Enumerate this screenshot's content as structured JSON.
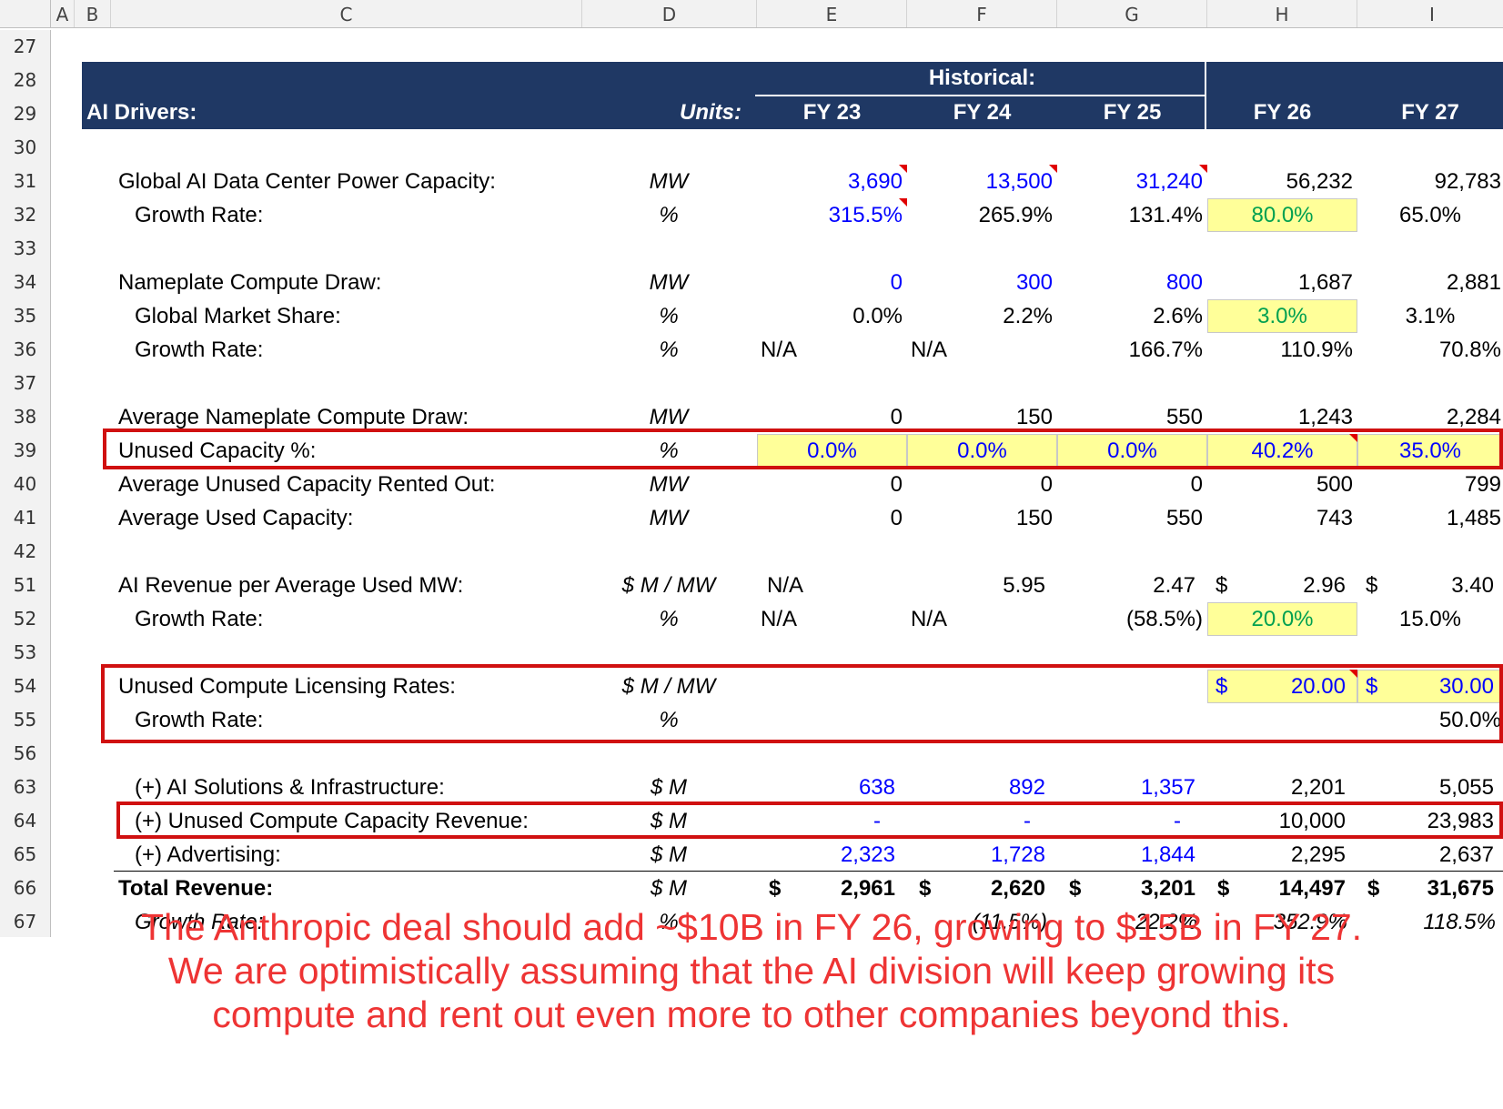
{
  "columns": [
    "A",
    "B",
    "C",
    "D",
    "E",
    "F",
    "G",
    "H",
    "I"
  ],
  "row_numbers": [
    "27",
    "28",
    "29",
    "30",
    "31",
    "32",
    "33",
    "34",
    "35",
    "36",
    "37",
    "38",
    "39",
    "40",
    "41",
    "42",
    "51",
    "52",
    "53",
    "54",
    "55",
    "56",
    "63",
    "64",
    "65",
    "66",
    "67"
  ],
  "header": {
    "title": "AI Drivers:",
    "units": "Units:",
    "historical": "Historical:",
    "years": [
      "FY 23",
      "FY 24",
      "FY 25",
      "FY 26",
      "FY 27"
    ]
  },
  "rows": {
    "r31": {
      "label": "Global AI Data Center Power Capacity:",
      "unit": "MW",
      "values": [
        "3,690",
        "13,500",
        "31,240",
        "56,232",
        "92,783"
      ]
    },
    "r32": {
      "label": "Growth Rate:",
      "unit": "%",
      "values": [
        "315.5%",
        "265.9%",
        "131.4%",
        "80.0%",
        "65.0%"
      ]
    },
    "r34": {
      "label": "Nameplate Compute Draw:",
      "unit": "MW",
      "values": [
        "0",
        "300",
        "800",
        "1,687",
        "2,881"
      ]
    },
    "r35": {
      "label": "Global Market Share:",
      "unit": "%",
      "values": [
        "0.0%",
        "2.2%",
        "2.6%",
        "3.0%",
        "3.1%"
      ]
    },
    "r36": {
      "label": "Growth Rate:",
      "unit": "%",
      "values": [
        "N/A",
        "N/A",
        "166.7%",
        "110.9%",
        "70.8%"
      ]
    },
    "r38": {
      "label": "Average Nameplate Compute Draw:",
      "unit": "MW",
      "values": [
        "0",
        "150",
        "550",
        "1,243",
        "2,284"
      ]
    },
    "r39": {
      "label": "Unused Capacity %:",
      "unit": "%",
      "values": [
        "0.0%",
        "0.0%",
        "0.0%",
        "40.2%",
        "35.0%"
      ]
    },
    "r40": {
      "label": "Average Unused Capacity Rented Out:",
      "unit": "MW",
      "values": [
        "0",
        "0",
        "0",
        "500",
        "799"
      ]
    },
    "r41": {
      "label": "Average Used Capacity:",
      "unit": "MW",
      "values": [
        "0",
        "150",
        "550",
        "743",
        "1,485"
      ]
    },
    "r51": {
      "label": "AI Revenue per Average Used MW:",
      "unit": "$ M / MW",
      "values": [
        "N/A",
        "5.95",
        "2.47",
        "2.96",
        "3.40"
      ],
      "dollar": "$"
    },
    "r52": {
      "label": "Growth Rate:",
      "unit": "%",
      "values": [
        "N/A",
        "N/A",
        "(58.5%)",
        "20.0%",
        "15.0%"
      ]
    },
    "r54": {
      "label": "Unused Compute Licensing Rates:",
      "unit": "$ M / MW",
      "values": [
        "20.00",
        "30.00"
      ],
      "dollar": "$"
    },
    "r55": {
      "label": "Growth Rate:",
      "unit": "%",
      "values": [
        "50.0%"
      ]
    },
    "r63": {
      "label": "(+) AI Solutions & Infrastructure:",
      "unit": "$ M",
      "values": [
        "638",
        "892",
        "1,357",
        "2,201",
        "5,055"
      ]
    },
    "r64": {
      "label": "(+) Unused Compute Capacity Revenue:",
      "unit": "$ M",
      "values": [
        "-",
        "-",
        "-",
        "10,000",
        "23,983"
      ]
    },
    "r65": {
      "label": "(+) Advertising:",
      "unit": "$ M",
      "values": [
        "2,323",
        "1,728",
        "1,844",
        "2,295",
        "2,637"
      ]
    },
    "r66": {
      "label": "Total Revenue:",
      "unit": "$ M",
      "values": [
        "2,961",
        "2,620",
        "3,201",
        "14,497",
        "31,675"
      ],
      "dollar": "$"
    },
    "r67": {
      "label": "Growth Rate:",
      "unit": "%",
      "values": [
        "(11.5%)",
        "22.2%",
        "352.9%",
        "118.5%"
      ]
    }
  },
  "caption": [
    "The Anthropic deal should add ~$10B in FY 26, growing to $15B in FY 27.",
    "We are optimistically assuming that the AI division will keep growing its",
    "compute and rent out even more to other companies beyond this."
  ],
  "colors": {
    "header_bg": "#1f3864",
    "input_blue": "#0000ff",
    "assumption_green": "#00a050",
    "highlight_yellow": "#ffff99",
    "annotation_red": "#d01010",
    "caption_red": "#ee3434"
  }
}
